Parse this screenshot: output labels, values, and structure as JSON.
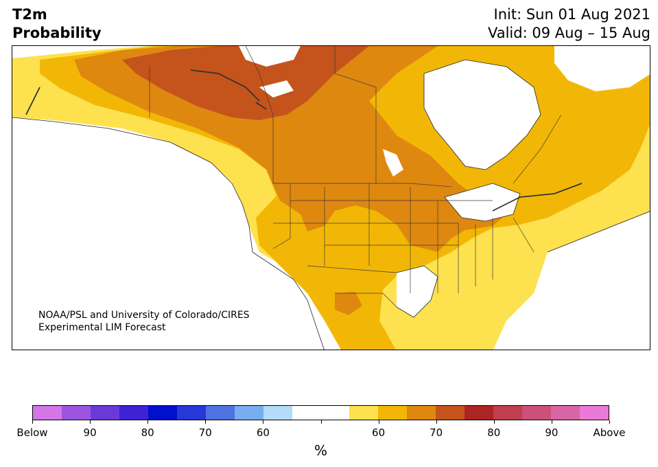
{
  "header": {
    "variable": "T2m",
    "product": "Probability",
    "init": "Init: Sun 01 Aug 2021",
    "valid": "Valid: 09 Aug – 15 Aug"
  },
  "map": {
    "region": "North America",
    "credit_line1": "NOAA/PSL and University of Colorado/CIRES",
    "credit_line2": "Experimental LIM Forecast"
  },
  "colorbar": {
    "unit": "%",
    "labels": [
      "Below",
      "90",
      "80",
      "70",
      "60",
      "60",
      "70",
      "80",
      "90",
      "Above"
    ],
    "colors": [
      "#d575e6",
      "#9c55de",
      "#6a3ad9",
      "#3e22d5",
      "#0010cd",
      "#2638d8",
      "#4e73e0",
      "#78adef",
      "#b4dcf8",
      "#ffffff",
      "#ffffff",
      "#fde14f",
      "#f2b706",
      "#de8810",
      "#c4541c",
      "#ac2424",
      "#c03e4e",
      "#cc5078",
      "#d866a6",
      "#e97ad8"
    ]
  }
}
